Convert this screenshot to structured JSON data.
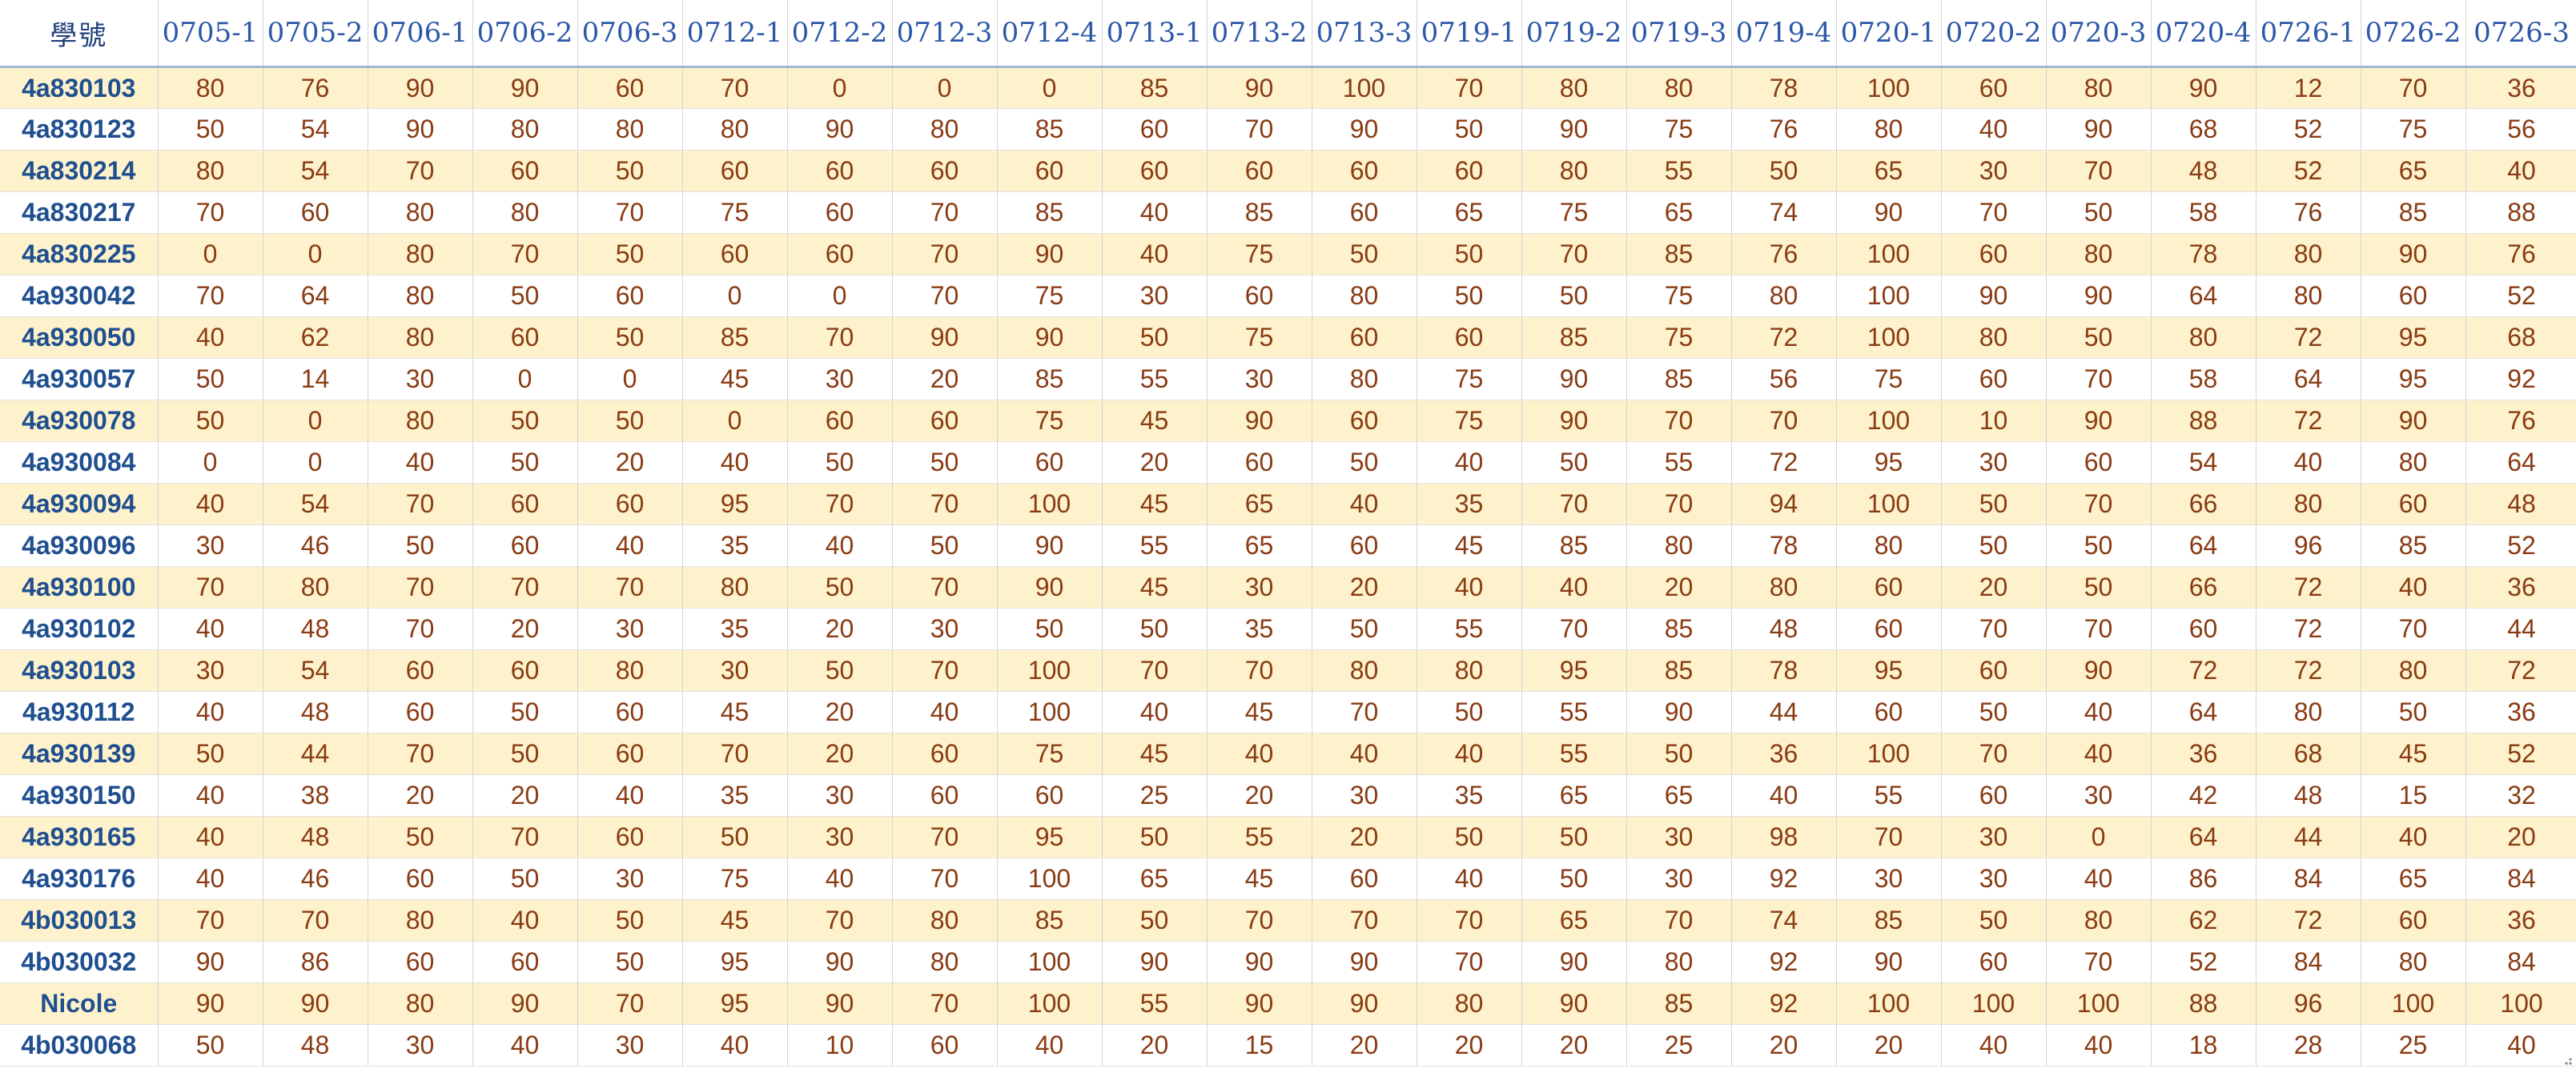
{
  "sheet": {
    "id_header": "學號",
    "columns": [
      "0705-1",
      "0705-2",
      "0706-1",
      "0706-2",
      "0706-3",
      "0712-1",
      "0712-2",
      "0712-3",
      "0712-4",
      "0713-1",
      "0713-2",
      "0713-3",
      "0719-1",
      "0719-2",
      "0719-3",
      "0719-4",
      "0720-1",
      "0720-2",
      "0720-3",
      "0720-4",
      "0726-1",
      "0726-2",
      "0726-3"
    ],
    "rows": [
      {
        "id": "4a830103",
        "scores": [
          "80",
          "76",
          "90",
          "90",
          "60",
          "70",
          "0",
          "0",
          "0",
          "85",
          "90",
          "100",
          "70",
          "80",
          "80",
          "78",
          "100",
          "60",
          "80",
          "90",
          "12",
          "70",
          "36"
        ]
      },
      {
        "id": "4a830123",
        "scores": [
          "50",
          "54",
          "90",
          "80",
          "80",
          "80",
          "90",
          "80",
          "85",
          "60",
          "70",
          "90",
          "50",
          "90",
          "75",
          "76",
          "80",
          "40",
          "90",
          "68",
          "52",
          "75",
          "56"
        ]
      },
      {
        "id": "4a830214",
        "scores": [
          "80",
          "54",
          "70",
          "60",
          "50",
          "60",
          "60",
          "60",
          "60",
          "60",
          "60",
          "60",
          "60",
          "80",
          "55",
          "50",
          "65",
          "30",
          "70",
          "48",
          "52",
          "65",
          "40"
        ]
      },
      {
        "id": "4a830217",
        "scores": [
          "70",
          "60",
          "80",
          "80",
          "70",
          "75",
          "60",
          "70",
          "85",
          "40",
          "85",
          "60",
          "65",
          "75",
          "65",
          "74",
          "90",
          "70",
          "50",
          "58",
          "76",
          "85",
          "88"
        ]
      },
      {
        "id": "4a830225",
        "scores": [
          "0",
          "0",
          "80",
          "70",
          "50",
          "60",
          "60",
          "70",
          "90",
          "40",
          "75",
          "50",
          "50",
          "70",
          "85",
          "76",
          "100",
          "60",
          "80",
          "78",
          "80",
          "90",
          "76"
        ]
      },
      {
        "id": "4a930042",
        "scores": [
          "70",
          "64",
          "80",
          "50",
          "60",
          "0",
          "0",
          "70",
          "75",
          "30",
          "60",
          "80",
          "50",
          "50",
          "75",
          "80",
          "100",
          "90",
          "90",
          "64",
          "80",
          "60",
          "52"
        ]
      },
      {
        "id": "4a930050",
        "scores": [
          "40",
          "62",
          "80",
          "60",
          "50",
          "85",
          "70",
          "90",
          "90",
          "50",
          "75",
          "60",
          "60",
          "85",
          "75",
          "72",
          "100",
          "80",
          "50",
          "80",
          "72",
          "95",
          "68"
        ]
      },
      {
        "id": "4a930057",
        "scores": [
          "50",
          "14",
          "30",
          "0",
          "0",
          "45",
          "30",
          "20",
          "85",
          "55",
          "30",
          "80",
          "75",
          "90",
          "85",
          "56",
          "75",
          "60",
          "70",
          "58",
          "64",
          "95",
          "92"
        ]
      },
      {
        "id": "4a930078",
        "scores": [
          "50",
          "0",
          "80",
          "50",
          "50",
          "0",
          "60",
          "60",
          "75",
          "45",
          "90",
          "60",
          "75",
          "90",
          "70",
          "70",
          "100",
          "10",
          "90",
          "88",
          "72",
          "90",
          "76"
        ]
      },
      {
        "id": "4a930084",
        "scores": [
          "0",
          "0",
          "40",
          "50",
          "20",
          "40",
          "50",
          "50",
          "60",
          "20",
          "60",
          "50",
          "40",
          "50",
          "55",
          "72",
          "95",
          "30",
          "60",
          "54",
          "40",
          "80",
          "64"
        ]
      },
      {
        "id": "4a930094",
        "scores": [
          "40",
          "54",
          "70",
          "60",
          "60",
          "95",
          "70",
          "70",
          "100",
          "45",
          "65",
          "40",
          "35",
          "70",
          "70",
          "94",
          "100",
          "50",
          "70",
          "66",
          "80",
          "60",
          "48"
        ]
      },
      {
        "id": "4a930096",
        "scores": [
          "30",
          "46",
          "50",
          "60",
          "40",
          "35",
          "40",
          "50",
          "90",
          "55",
          "65",
          "60",
          "45",
          "85",
          "80",
          "78",
          "80",
          "50",
          "50",
          "64",
          "96",
          "85",
          "52"
        ]
      },
      {
        "id": "4a930100",
        "scores": [
          "70",
          "80",
          "70",
          "70",
          "70",
          "80",
          "50",
          "70",
          "90",
          "45",
          "30",
          "20",
          "40",
          "40",
          "20",
          "80",
          "60",
          "20",
          "50",
          "66",
          "72",
          "40",
          "36"
        ]
      },
      {
        "id": "4a930102",
        "scores": [
          "40",
          "48",
          "70",
          "20",
          "30",
          "35",
          "20",
          "30",
          "50",
          "50",
          "35",
          "50",
          "55",
          "70",
          "85",
          "48",
          "60",
          "70",
          "70",
          "60",
          "72",
          "70",
          "44"
        ]
      },
      {
        "id": "4a930103",
        "scores": [
          "30",
          "54",
          "60",
          "60",
          "80",
          "30",
          "50",
          "70",
          "100",
          "70",
          "70",
          "80",
          "80",
          "95",
          "85",
          "78",
          "95",
          "60",
          "90",
          "72",
          "72",
          "80",
          "72"
        ]
      },
      {
        "id": "4a930112",
        "scores": [
          "40",
          "48",
          "60",
          "50",
          "60",
          "45",
          "20",
          "40",
          "100",
          "40",
          "45",
          "70",
          "50",
          "55",
          "90",
          "44",
          "60",
          "50",
          "40",
          "64",
          "80",
          "50",
          "36"
        ]
      },
      {
        "id": "4a930139",
        "scores": [
          "50",
          "44",
          "70",
          "50",
          "60",
          "70",
          "20",
          "60",
          "75",
          "45",
          "40",
          "40",
          "40",
          "55",
          "50",
          "36",
          "100",
          "70",
          "40",
          "36",
          "68",
          "45",
          "52"
        ]
      },
      {
        "id": "4a930150",
        "scores": [
          "40",
          "38",
          "20",
          "20",
          "40",
          "35",
          "30",
          "60",
          "60",
          "25",
          "20",
          "30",
          "35",
          "65",
          "65",
          "40",
          "55",
          "60",
          "30",
          "42",
          "48",
          "15",
          "32"
        ]
      },
      {
        "id": "4a930165",
        "scores": [
          "40",
          "48",
          "50",
          "70",
          "60",
          "50",
          "30",
          "70",
          "95",
          "50",
          "55",
          "20",
          "50",
          "50",
          "30",
          "98",
          "70",
          "30",
          "0",
          "64",
          "44",
          "40",
          "20"
        ]
      },
      {
        "id": "4a930176",
        "scores": [
          "40",
          "46",
          "60",
          "50",
          "30",
          "75",
          "40",
          "70",
          "100",
          "65",
          "45",
          "60",
          "40",
          "50",
          "30",
          "92",
          "30",
          "30",
          "40",
          "86",
          "84",
          "65",
          "84"
        ]
      },
      {
        "id": "4b030013",
        "scores": [
          "70",
          "70",
          "80",
          "40",
          "50",
          "45",
          "70",
          "80",
          "85",
          "50",
          "70",
          "70",
          "70",
          "65",
          "70",
          "74",
          "85",
          "50",
          "80",
          "62",
          "72",
          "60",
          "36"
        ]
      },
      {
        "id": "4b030032",
        "scores": [
          "90",
          "86",
          "60",
          "60",
          "50",
          "95",
          "90",
          "80",
          "100",
          "90",
          "90",
          "90",
          "70",
          "90",
          "80",
          "92",
          "90",
          "60",
          "70",
          "52",
          "84",
          "80",
          "84"
        ]
      },
      {
        "id": "Nicole",
        "scores": [
          "90",
          "90",
          "80",
          "90",
          "70",
          "95",
          "90",
          "70",
          "100",
          "55",
          "90",
          "90",
          "80",
          "90",
          "85",
          "92",
          "100",
          "100",
          "100",
          "88",
          "96",
          "100",
          "100"
        ]
      },
      {
        "id": "4b030068",
        "scores": [
          "50",
          "48",
          "30",
          "40",
          "30",
          "40",
          "10",
          "60",
          "40",
          "20",
          "15",
          "20",
          "20",
          "20",
          "25",
          "20",
          "20",
          "40",
          "40",
          "18",
          "28",
          "25",
          "40"
        ]
      }
    ]
  },
  "colors": {
    "header_text": "#2d58a8",
    "id_text": "#1f4f8f",
    "score_text": "#8a3b12",
    "band_fill": "#fdf2cc"
  }
}
